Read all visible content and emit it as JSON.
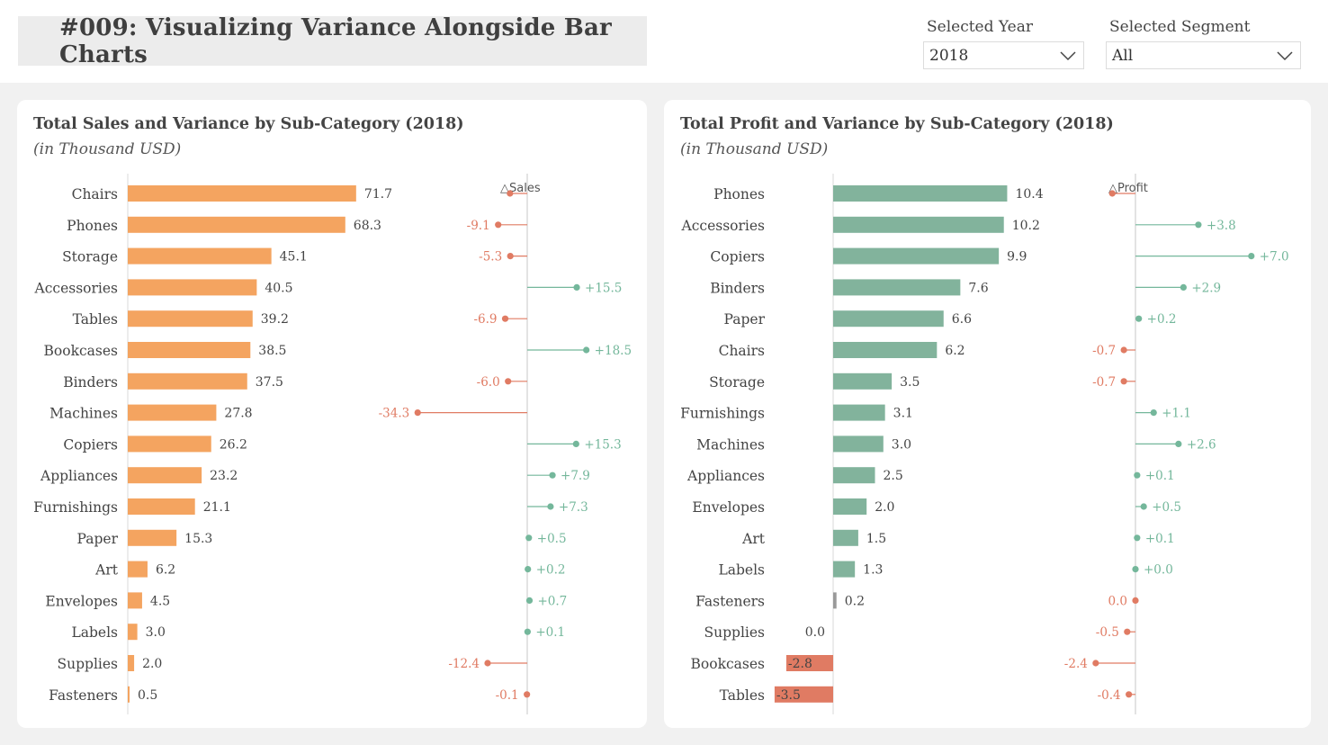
{
  "header": {
    "title": "#009: Visualizing Variance Alongside Bar Charts",
    "year_label": "Selected Year",
    "year_value": "2018",
    "segment_label": "Selected Segment",
    "segment_value": "All"
  },
  "colors": {
    "sales_bar": "#f4a460",
    "profit_bar": "#82b39c",
    "negative": "#e07b63",
    "positive": "#74b79b"
  },
  "chart_data": [
    {
      "type": "bar",
      "title": "Total Sales and Variance by Sub-Category (2018)",
      "subtitle": "(in Thousand USD)",
      "variance_label": "△Sales",
      "categories": [
        "Chairs",
        "Phones",
        "Storage",
        "Accessories",
        "Tables",
        "Bookcases",
        "Binders",
        "Machines",
        "Copiers",
        "Appliances",
        "Furnishings",
        "Paper",
        "Art",
        "Envelopes",
        "Labels",
        "Supplies",
        "Fasteners"
      ],
      "values": [
        71.7,
        68.3,
        45.1,
        40.5,
        39.2,
        38.5,
        37.5,
        27.8,
        26.2,
        23.2,
        21.1,
        15.3,
        6.2,
        4.5,
        3.0,
        2.0,
        0.5
      ],
      "value_labels": [
        "71.7",
        "68.3",
        "45.1",
        "40.5",
        "39.2",
        "38.5",
        "37.5",
        "27.8",
        "26.2",
        "23.2",
        "21.1",
        "15.3",
        "6.2",
        "4.5",
        "3.0",
        "2.0",
        "0.5"
      ],
      "variance": [
        -5.4,
        -9.1,
        -5.3,
        15.5,
        -6.9,
        18.5,
        -6.0,
        -34.3,
        15.3,
        7.9,
        7.3,
        0.5,
        0.2,
        0.7,
        0.1,
        -12.4,
        -0.1
      ],
      "variance_labels": [
        "",
        "-9.1",
        "-5.3",
        "+15.5",
        "-6.9",
        "+18.5",
        "-6.0",
        "-34.3",
        "+15.3",
        "+7.9",
        "+7.3",
        "+0.5",
        "+0.2",
        "+0.7",
        "+0.1",
        "-12.4",
        "-0.1"
      ]
    },
    {
      "type": "bar",
      "title": "Total Profit and Variance by Sub-Category (2018)",
      "subtitle": "(in Thousand USD)",
      "variance_label": "△Profit",
      "categories": [
        "Phones",
        "Accessories",
        "Copiers",
        "Binders",
        "Paper",
        "Chairs",
        "Storage",
        "Furnishings",
        "Machines",
        "Appliances",
        "Envelopes",
        "Art",
        "Labels",
        "Fasteners",
        "Supplies",
        "Bookcases",
        "Tables"
      ],
      "values": [
        10.4,
        10.2,
        9.9,
        7.6,
        6.6,
        6.2,
        3.5,
        3.1,
        3.0,
        2.5,
        2.0,
        1.5,
        1.3,
        0.2,
        0.0,
        -2.8,
        -3.5
      ],
      "value_labels": [
        "10.4",
        "10.2",
        "9.9",
        "7.6",
        "6.6",
        "6.2",
        "3.5",
        "3.1",
        "3.0",
        "2.5",
        "2.0",
        "1.5",
        "1.3",
        "0.2",
        "0.0",
        "-2.8",
        "-3.5"
      ],
      "variance": [
        -1.4,
        3.8,
        7.0,
        2.9,
        0.2,
        -0.7,
        -0.7,
        1.1,
        2.6,
        0.1,
        0.5,
        0.1,
        0.0,
        0.0,
        -0.5,
        -2.4,
        -0.4
      ],
      "variance_labels": [
        "",
        "+3.8",
        "+7.0",
        "+2.9",
        "+0.2",
        "-0.7",
        "-0.7",
        "+1.1",
        "+2.6",
        "+0.1",
        "+0.5",
        "+0.1",
        "+0.0",
        "0.0",
        "-0.5",
        "-2.4",
        "-0.4"
      ]
    }
  ]
}
